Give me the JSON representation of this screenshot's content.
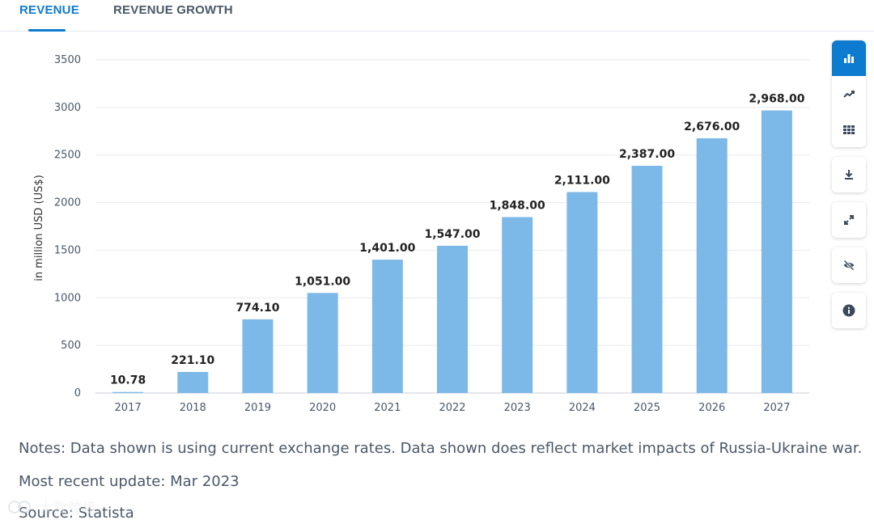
{
  "tabs": {
    "revenue": "REVENUE",
    "revenue_growth": "REVENUE GROWTH"
  },
  "toolbar": {
    "icons": [
      "bar-chart-icon",
      "line-chart-icon",
      "table-icon",
      "download-icon",
      "fullscreen-icon",
      "hide-icon",
      "info-icon"
    ],
    "accent": "#0d7bd0"
  },
  "chart_data": {
    "type": "bar",
    "categories": [
      "2017",
      "2018",
      "2019",
      "2020",
      "2021",
      "2022",
      "2023",
      "2024",
      "2025",
      "2026",
      "2027"
    ],
    "values": [
      10.78,
      221.1,
      774.1,
      1051.0,
      1401.0,
      1547.0,
      1848.0,
      2111.0,
      2387.0,
      2676.0,
      2968.0
    ],
    "value_labels": [
      "10.78",
      "221.10",
      "774.10",
      "1,051.00",
      "1,401.00",
      "1,547.00",
      "1,848.00",
      "2,111.00",
      "2,387.00",
      "2,676.00",
      "2,968.00"
    ],
    "ylabel": "in million USD (US$)",
    "xlabel": "",
    "ylim": [
      0,
      3500
    ],
    "yticks": [
      "0",
      "500",
      "1000",
      "1500",
      "2000",
      "2500",
      "3000",
      "3500"
    ],
    "grid": true,
    "bar_color": "#7cb9e8"
  },
  "notes": {
    "notes_text": "Notes: Data shown is using current exchange rates. Data shown does reflect market impacts of Russia-Ukraine war.",
    "update_text": "Most recent update: Mar 2023",
    "source_text": "Source: Statista"
  },
  "watermark": {
    "text": "大数跨境"
  }
}
